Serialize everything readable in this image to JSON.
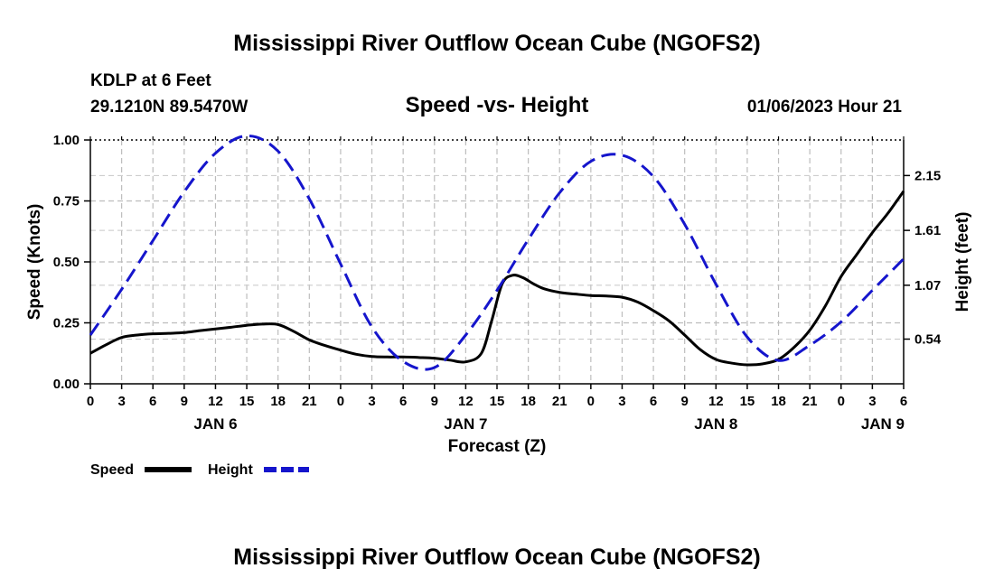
{
  "page": {
    "title": "Mississippi River Outflow Ocean Cube (NGOFS2)",
    "title_repeat": "Mississippi River Outflow Ocean Cube (NGOFS2)",
    "station": "KDLP at 6 Feet",
    "coords": "29.1210N  89.5470W",
    "subtitle": "Speed -vs- Height",
    "datetime": "01/06/2023 Hour 21"
  },
  "chart_data": {
    "type": "line",
    "title": "Speed -vs- Height",
    "xlabel": "Forecast (Z)",
    "ylabel": "Speed (Knots)",
    "y2label": "Height (feet)",
    "x_unit": "hours since JAN 6 00Z",
    "xlim": [
      0,
      78
    ],
    "ylim": [
      0,
      1.0
    ],
    "y2lim": [
      0.1,
      2.5
    ],
    "x_ticks": [
      0,
      3,
      6,
      9,
      12,
      15,
      18,
      21,
      24,
      27,
      30,
      33,
      36,
      39,
      42,
      45,
      48,
      51,
      54,
      57,
      60,
      63,
      66,
      69,
      72,
      75,
      78
    ],
    "x_tick_labels": [
      "0",
      "3",
      "6",
      "9",
      "12",
      "15",
      "18",
      "21",
      "0",
      "3",
      "6",
      "9",
      "12",
      "15",
      "18",
      "21",
      "0",
      "3",
      "6",
      "9",
      "12",
      "15",
      "18",
      "21",
      "0",
      "3",
      "6"
    ],
    "day_labels": [
      {
        "x": 12,
        "label": "JAN 6"
      },
      {
        "x": 36,
        "label": "JAN 7"
      },
      {
        "x": 60,
        "label": "JAN 8"
      },
      {
        "x": 76,
        "label": "JAN 9"
      }
    ],
    "y_ticks": [
      0.0,
      0.25,
      0.5,
      0.75,
      1.0
    ],
    "y_tick_labels": [
      "0.00",
      "0.25",
      "0.50",
      "0.75",
      "1.00"
    ],
    "y2_ticks": [
      0.54,
      1.07,
      1.61,
      2.15
    ],
    "y2_tick_labels": [
      "0.54",
      "1.07",
      "1.61",
      "2.15"
    ],
    "grid": true,
    "legend_position": "bottom-left",
    "series": [
      {
        "name": "Speed",
        "axis": "left",
        "color": "#000000",
        "style": "solid",
        "x": [
          0,
          1.5,
          3,
          4.5,
          6,
          7.5,
          9,
          10.5,
          12,
          13.5,
          15,
          16.5,
          18,
          19.5,
          21,
          22.5,
          24,
          25.5,
          27,
          28.5,
          30,
          31.5,
          33,
          34.5,
          36,
          37.5,
          38.5,
          39.5,
          40.5,
          41.5,
          42.5,
          43.5,
          45,
          46.5,
          48,
          49.5,
          51,
          52.5,
          54,
          55.5,
          57,
          58.5,
          60,
          61.5,
          63,
          64.5,
          66,
          67.5,
          69,
          70.5,
          72,
          73.5,
          75,
          76.5,
          78
        ],
        "values": [
          0.125,
          0.16,
          0.19,
          0.2,
          0.205,
          0.207,
          0.21,
          0.218,
          0.225,
          0.232,
          0.24,
          0.245,
          0.243,
          0.215,
          0.18,
          0.157,
          0.138,
          0.121,
          0.112,
          0.11,
          0.11,
          0.108,
          0.105,
          0.097,
          0.09,
          0.125,
          0.26,
          0.41,
          0.445,
          0.435,
          0.41,
          0.39,
          0.375,
          0.368,
          0.362,
          0.36,
          0.355,
          0.335,
          0.3,
          0.258,
          0.2,
          0.14,
          0.1,
          0.085,
          0.078,
          0.082,
          0.1,
          0.15,
          0.22,
          0.32,
          0.44,
          0.53,
          0.62,
          0.7,
          0.79
        ]
      },
      {
        "name": "Height",
        "axis": "right",
        "color": "#1515cc",
        "style": "dashed",
        "x": [
          0,
          3,
          6,
          9,
          12,
          15,
          18,
          21,
          24,
          27,
          30,
          33,
          36,
          39,
          42,
          45,
          48,
          51,
          54,
          57,
          60,
          63,
          66,
          69,
          72,
          75,
          78
        ],
        "values": [
          0.58,
          1.03,
          1.51,
          1.99,
          2.37,
          2.54,
          2.39,
          1.92,
          1.28,
          0.66,
          0.32,
          0.26,
          0.58,
          1.02,
          1.52,
          1.98,
          2.29,
          2.35,
          2.14,
          1.67,
          1.08,
          0.56,
          0.33,
          0.48,
          0.71,
          1.02,
          1.33
        ]
      }
    ]
  },
  "legend": {
    "speed_label": "Speed",
    "height_label": "Height",
    "speed_color": "#000000",
    "height_color": "#1515cc"
  }
}
